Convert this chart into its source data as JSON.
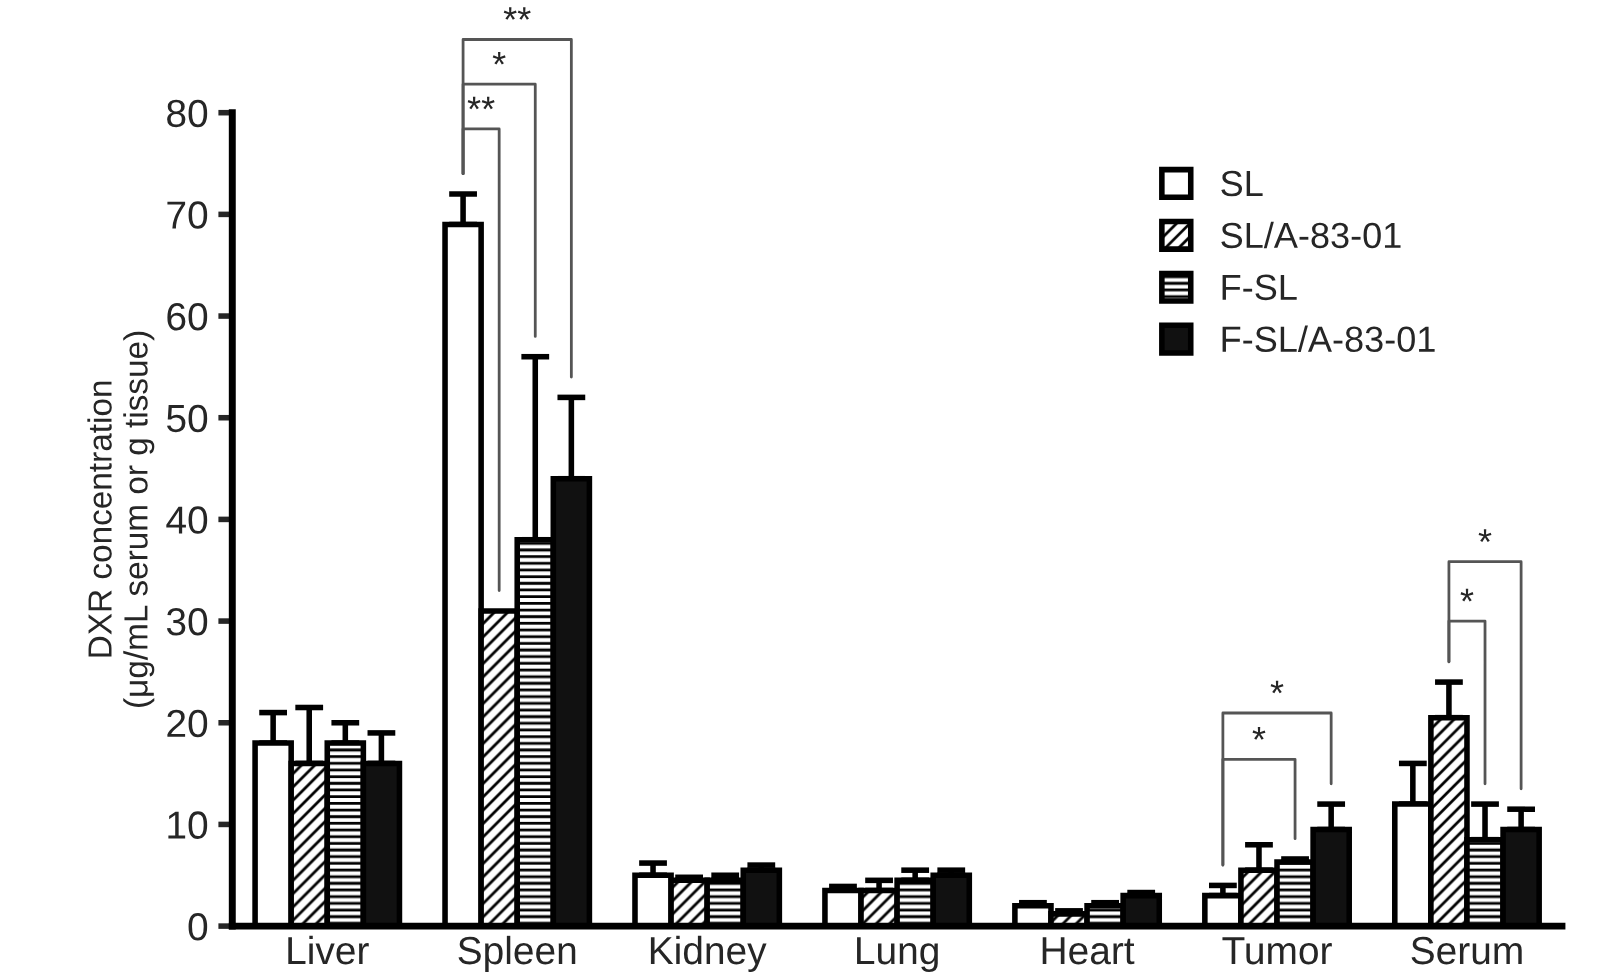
{
  "chart_data": {
    "type": "bar",
    "ylabel": "DXR concentration\n(μg/mL serum or g tissue)",
    "categories": [
      "Liver",
      "Spleen",
      "Kidney",
      "Lung",
      "Heart",
      "Tumor",
      "Serum"
    ],
    "series": [
      {
        "name": "SL",
        "color": "#ffffff",
        "values": [
          18,
          69,
          5,
          3.5,
          2,
          3,
          12
        ],
        "errors": [
          3,
          3,
          1.2,
          0.4,
          0.3,
          1,
          4
        ]
      },
      {
        "name": "SL/A-83-01",
        "color": "#000000",
        "values": [
          16,
          31,
          4.5,
          3.5,
          1.2,
          5.5,
          20.5
        ],
        "errors": [
          5.5,
          null,
          0.3,
          1,
          0.3,
          2.5,
          3.5
        ]
      },
      {
        "name": "F-SL",
        "color": "#000000",
        "values": [
          18,
          38,
          4.5,
          4.5,
          2,
          6.3,
          8.5
        ],
        "errors": [
          2,
          18,
          0.5,
          1,
          0.3,
          0.3,
          3.5
        ]
      },
      {
        "name": "F-SL/A-83-01",
        "color": "#111111",
        "values": [
          16,
          44,
          5.5,
          5,
          3,
          9.5,
          9.5
        ],
        "errors": [
          3,
          8,
          0.5,
          0.5,
          0.3,
          2.5,
          2
        ]
      }
    ],
    "ylim": [
      0,
      80
    ],
    "yticks": [
      0,
      10,
      20,
      30,
      40,
      50,
      60,
      70,
      80
    ],
    "legend": "top right",
    "grid": false,
    "annotations": [
      "**",
      "*",
      "**",
      "*",
      "*",
      "*",
      "*"
    ]
  }
}
